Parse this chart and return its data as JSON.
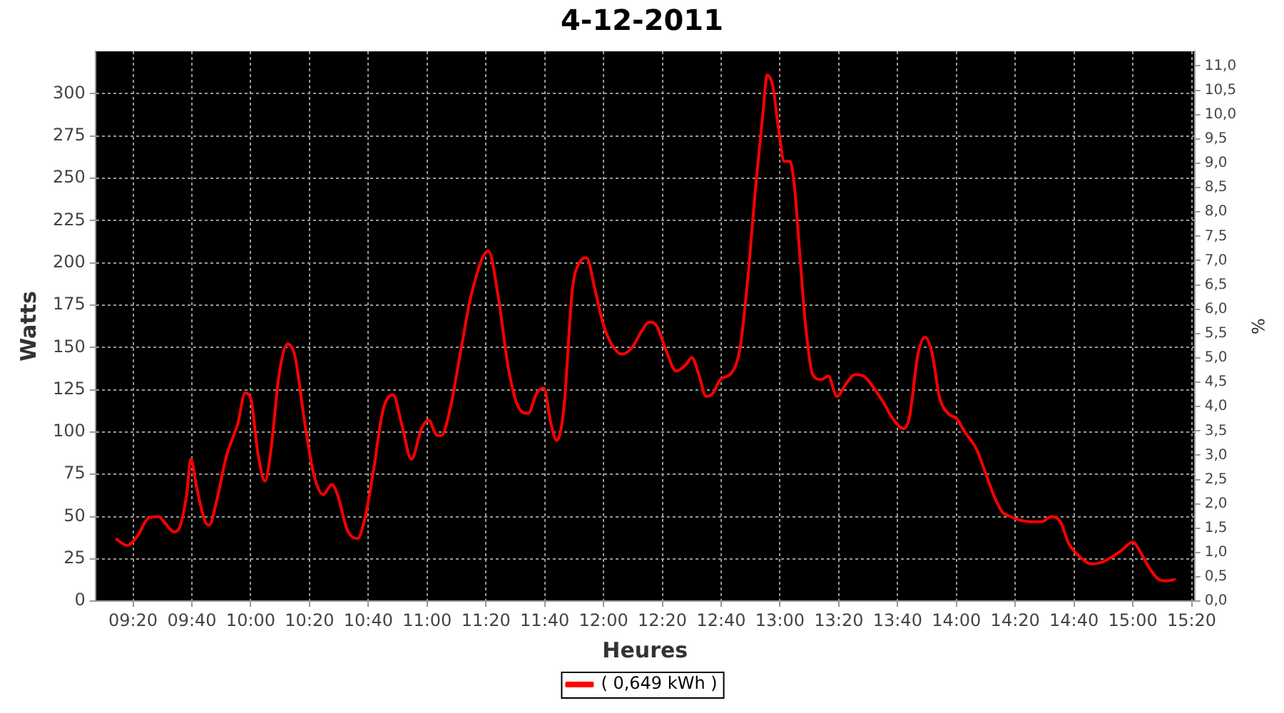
{
  "chart_data": {
    "type": "line",
    "title": "4-12-2011",
    "xlabel": "Heures",
    "ylabel": "Watts",
    "y2label": "%",
    "x": [
      9.234,
      9.299,
      9.355,
      9.419,
      9.476,
      9.516,
      9.565,
      9.589,
      9.637,
      9.661,
      9.694,
      9.742,
      9.766,
      9.806,
      9.863,
      9.927,
      9.968,
      10.0,
      10.04,
      10.081,
      10.113,
      10.161,
      10.21,
      10.25,
      10.307,
      10.355,
      10.411,
      10.46,
      10.492,
      10.548,
      10.605,
      10.645,
      10.694,
      10.75,
      10.807,
      10.855,
      10.911,
      10.968,
      11.008,
      11.057,
      11.081,
      11.129,
      11.194,
      11.25,
      11.347,
      11.403,
      11.46,
      11.516,
      11.573,
      11.621,
      11.661,
      11.702,
      11.734,
      11.774,
      11.823,
      11.863,
      11.903,
      11.952,
      12.0,
      12.057,
      12.105,
      12.162,
      12.218,
      12.258,
      12.299,
      12.355,
      12.411,
      12.468,
      12.5,
      12.54,
      12.581,
      12.621,
      12.661,
      12.726,
      12.774,
      12.815,
      12.863,
      12.903,
      12.927,
      12.96,
      12.992,
      13.024,
      13.056,
      13.081,
      13.113,
      13.145,
      13.185,
      13.234,
      13.274,
      13.323,
      13.371,
      13.427,
      13.476,
      13.532,
      13.589,
      13.645,
      13.702,
      13.734,
      13.782,
      13.823,
      13.863,
      13.903,
      13.952,
      14.0,
      14.048,
      14.113,
      14.161,
      14.21,
      14.258,
      14.306,
      14.355,
      14.419,
      14.484,
      14.54,
      14.589,
      14.637,
      14.702,
      14.766,
      14.823,
      14.879,
      14.935,
      15.0,
      15.048,
      15.097,
      15.145,
      15.194,
      15.242
    ],
    "series": [
      {
        "name": "( 0,649 kWh )",
        "color": "#ff0000",
        "values": [
          37,
          33,
          38,
          49,
          50,
          46,
          41,
          42,
          63,
          84,
          67,
          47,
          45,
          59,
          86,
          105,
          123,
          120,
          88,
          71,
          88,
          134,
          152,
          145,
          105,
          76,
          63,
          69,
          63,
          42,
          37,
          48,
          76,
          113,
          122,
          105,
          84,
          102,
          107,
          98,
          98,
          113,
          150,
          181,
          207,
          180,
          138,
          115,
          111,
          123,
          126,
          105,
          95,
          113,
          184,
          200,
          203,
          184,
          163,
          150,
          146,
          150,
          160,
          165,
          163,
          148,
          136,
          140,
          144,
          134,
          121,
          123,
          131,
          135,
          150,
          188,
          246,
          288,
          311,
          304,
          279,
          260,
          260,
          246,
          204,
          163,
          134,
          131,
          133,
          121,
          128,
          134,
          133,
          126,
          117,
          107,
          102,
          109,
          146,
          156,
          146,
          121,
          111,
          108,
          100,
          90,
          77,
          63,
          53,
          50,
          48,
          47,
          47,
          50,
          47,
          34,
          26,
          22,
          23,
          26,
          30,
          35,
          28,
          19,
          13,
          12,
          13
        ]
      }
    ],
    "xlim": [
      9.12,
      15.35
    ],
    "xticks": [
      {
        "value": 9.3333,
        "label": "09:20"
      },
      {
        "value": 9.6667,
        "label": "09:40"
      },
      {
        "value": 10,
        "label": "10:00"
      },
      {
        "value": 10.3333,
        "label": "10:20"
      },
      {
        "value": 10.6667,
        "label": "10:40"
      },
      {
        "value": 11,
        "label": "11:00"
      },
      {
        "value": 11.3333,
        "label": "11:20"
      },
      {
        "value": 11.6667,
        "label": "11:40"
      },
      {
        "value": 12,
        "label": "12:00"
      },
      {
        "value": 12.3333,
        "label": "12:20"
      },
      {
        "value": 12.6667,
        "label": "12:40"
      },
      {
        "value": 13,
        "label": "13:00"
      },
      {
        "value": 13.3333,
        "label": "13:20"
      },
      {
        "value": 13.6667,
        "label": "13:40"
      },
      {
        "value": 14,
        "label": "14:00"
      },
      {
        "value": 14.3333,
        "label": "14:20"
      },
      {
        "value": 14.6667,
        "label": "14:40"
      },
      {
        "value": 15,
        "label": "15:00"
      },
      {
        "value": 15.3333,
        "label": "15:20"
      }
    ],
    "ylim": [
      0,
      325
    ],
    "yticks": [
      0,
      25,
      50,
      75,
      100,
      125,
      150,
      175,
      200,
      225,
      250,
      275,
      300
    ],
    "y2lim": [
      0,
      11.3
    ],
    "y2ticks": [
      {
        "value": 0,
        "label": "0,0"
      },
      {
        "value": 0.5,
        "label": "0,5"
      },
      {
        "value": 1,
        "label": "1,0"
      },
      {
        "value": 1.5,
        "label": "1,5"
      },
      {
        "value": 2,
        "label": "2,0"
      },
      {
        "value": 2.5,
        "label": "2,5"
      },
      {
        "value": 3,
        "label": "3,0"
      },
      {
        "value": 3.5,
        "label": "3,5"
      },
      {
        "value": 4,
        "label": "4,0"
      },
      {
        "value": 4.5,
        "label": "4,5"
      },
      {
        "value": 5,
        "label": "5,0"
      },
      {
        "value": 5.5,
        "label": "5,5"
      },
      {
        "value": 6,
        "label": "6,0"
      },
      {
        "value": 6.5,
        "label": "6,5"
      },
      {
        "value": 7,
        "label": "7,0"
      },
      {
        "value": 7.5,
        "label": "7,5"
      },
      {
        "value": 8,
        "label": "8,0"
      },
      {
        "value": 8.5,
        "label": "8,5"
      },
      {
        "value": 9,
        "label": "9,0"
      },
      {
        "value": 9.5,
        "label": "9,5"
      },
      {
        "value": 10,
        "label": "10,0"
      },
      {
        "value": 10.5,
        "label": "10,5"
      },
      {
        "value": 11,
        "label": "11,0"
      }
    ],
    "grid": true,
    "legend": "bottom",
    "marker": "none"
  }
}
